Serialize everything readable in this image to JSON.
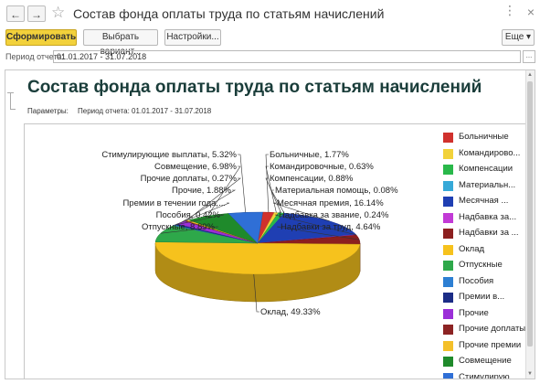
{
  "window": {
    "title": "Состав фонда оплаты труда по статьям начислений",
    "back_glyph": "←",
    "forward_glyph": "→",
    "star_glyph": "☆",
    "menu_glyph": "⋮",
    "close_glyph": "×"
  },
  "toolbar": {
    "generate_label": "Сформировать",
    "variant_label": "Выбрать вариант...",
    "settings_label": "Настройки...",
    "more_label": "Еще ▾"
  },
  "period": {
    "label": "Период отчета:",
    "value": "01.01.2017 - 31.07.2018",
    "picker_glyph": "..."
  },
  "report": {
    "title": "Состав фонда оплаты труда по статьям начислений",
    "params_label": "Параметры:",
    "params_value": "Период отчета: 01.01.2017 - 31.07.2018"
  },
  "chart_data": {
    "type": "pie",
    "slices": [
      {
        "name": "Больничные",
        "legend": "Больничные",
        "label": "Больничные, 1.77%",
        "value": 1.77,
        "color": "#d0312d"
      },
      {
        "name": "Командировочные",
        "legend": "Командирово...",
        "label": "Командировочные, 0.63%",
        "value": 0.63,
        "color": "#f2d23a"
      },
      {
        "name": "Компенсации",
        "legend": "Компенсации",
        "label": "Компенсации, 0.88%",
        "value": 0.88,
        "color": "#29b84a"
      },
      {
        "name": "Материальная помощь",
        "legend": "Материальн...",
        "label": "Материальная помощь, 0.08%",
        "value": 0.08,
        "color": "#36a9d8"
      },
      {
        "name": "Месячная премия",
        "legend": "Месячная ...",
        "label": "Месячная премия, 16.14%",
        "value": 16.14,
        "color": "#1f3fb3"
      },
      {
        "name": "Надбавка за звание",
        "legend": "Надбавка за...",
        "label": "Надбавка за звание, 0.24%",
        "value": 0.24,
        "color": "#c23ad6"
      },
      {
        "name": "Надбавки за труд",
        "legend": "Надбавки за ...",
        "label": "Надбавки за труд, 4.64%",
        "value": 4.64,
        "color": "#8c1f1f"
      },
      {
        "name": "Оклад",
        "legend": "Оклад",
        "label": "Оклад, 49.33%",
        "value": 49.33,
        "color": "#f6c21d"
      },
      {
        "name": "Отпускные",
        "legend": "Отпускные",
        "label": "Отпускные, 8.89%",
        "value": 8.89,
        "color": "#2ea84a"
      },
      {
        "name": "Пособия",
        "legend": "Пособия",
        "label": "Пособия, 0.42%",
        "value": 0.42,
        "color": "#2d7fd3"
      },
      {
        "name": "Премии в течении года",
        "legend": "Премии в...",
        "label": "Премии в течении года,...",
        "value": 0.5,
        "color": "#1b2c86"
      },
      {
        "name": "Прочие",
        "legend": "Прочие",
        "label": "Прочие, 1.88%",
        "value": 1.88,
        "color": "#9b2fd8"
      },
      {
        "name": "Прочие доплаты",
        "legend": "Прочие доплаты",
        "label": "Прочие доплаты, 0.27%",
        "value": 0.27,
        "color": "#8c2323"
      },
      {
        "name": "Прочие премии",
        "legend": "Прочие премии",
        "label": "",
        "value": 0.5,
        "color": "#f4c02a"
      },
      {
        "name": "Совмещение",
        "legend": "Совмещение",
        "label": "Совмещение, 6.98%",
        "value": 6.98,
        "color": "#1f8a2b"
      },
      {
        "name": "Стимулирующие выплаты",
        "legend": "Стимулирую...",
        "label": "Стимулирующие выплаты, 5.32%",
        "value": 5.32,
        "color": "#2f6fd6"
      }
    ]
  }
}
